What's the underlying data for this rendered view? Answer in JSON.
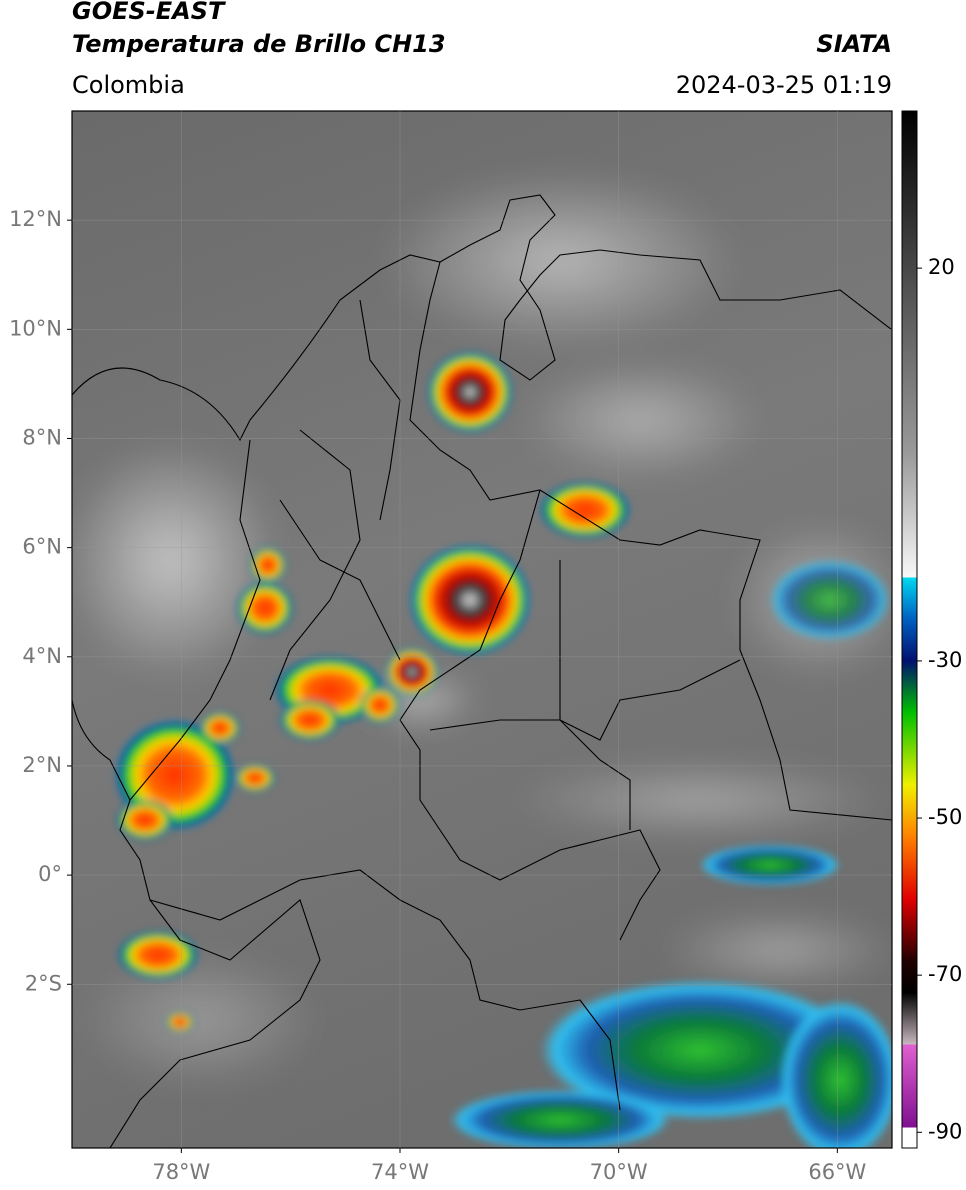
{
  "header": {
    "satellite": "GOES-EAST",
    "product": "Temperatura de Brillo CH13",
    "source": "SIATA",
    "region": "Colombia",
    "datetime": "2024-03-25 01:19"
  },
  "map": {
    "lon_range": [
      -80,
      -65
    ],
    "lat_range": [
      -5,
      14
    ],
    "lon_ticks": [
      {
        "value": -78,
        "label": "78°W"
      },
      {
        "value": -74,
        "label": "74°W"
      },
      {
        "value": -70,
        "label": "70°W"
      },
      {
        "value": -66,
        "label": "66°W"
      }
    ],
    "lat_ticks": [
      {
        "value": 12,
        "label": "12°N"
      },
      {
        "value": 10,
        "label": "10°N"
      },
      {
        "value": 8,
        "label": "8°N"
      },
      {
        "value": 6,
        "label": "6°N"
      },
      {
        "value": 4,
        "label": "4°N"
      },
      {
        "value": 2,
        "label": "2°N"
      },
      {
        "value": 0,
        "label": "0°"
      },
      {
        "value": -2,
        "label": "2°S"
      }
    ]
  },
  "colorbar": {
    "range": [
      -92,
      40
    ],
    "ticks": [
      20,
      -30,
      -50,
      -70,
      -90
    ]
  }
}
